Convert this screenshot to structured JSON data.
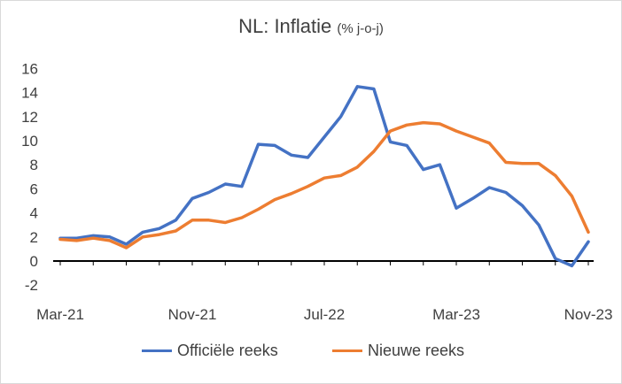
{
  "chart_data": {
    "type": "line",
    "title": "NL: Inflatie",
    "subtitle": "(% j-o-j)",
    "xlabel": "",
    "ylabel": "",
    "ylim": [
      -2,
      16
    ],
    "yticks": [
      "-2",
      "0",
      "2",
      "4",
      "6",
      "8",
      "10",
      "12",
      "14",
      "16"
    ],
    "xticks": [
      "Mar-21",
      "Nov-21",
      "Jul-22",
      "Mar-23",
      "Nov-23"
    ],
    "x": [
      "Mar-21",
      "Apr-21",
      "May-21",
      "Jun-21",
      "Jul-21",
      "Aug-21",
      "Sep-21",
      "Oct-21",
      "Nov-21",
      "Dec-21",
      "Jan-22",
      "Feb-22",
      "Mar-22",
      "Apr-22",
      "May-22",
      "Jun-22",
      "Jul-22",
      "Aug-22",
      "Sep-22",
      "Oct-22",
      "Nov-22",
      "Dec-22",
      "Jan-23",
      "Feb-23",
      "Mar-23",
      "Apr-23",
      "May-23",
      "Jun-23",
      "Jul-23",
      "Aug-23",
      "Sep-23",
      "Oct-23",
      "Nov-23"
    ],
    "series": [
      {
        "name": "Officiële reeks",
        "color": "#4472c4",
        "values": [
          1.9,
          1.9,
          2.1,
          2.0,
          1.4,
          2.4,
          2.7,
          3.4,
          5.2,
          5.7,
          6.4,
          6.2,
          9.7,
          9.6,
          8.8,
          8.6,
          10.3,
          12.0,
          14.5,
          14.3,
          9.9,
          9.6,
          7.6,
          8.0,
          4.4,
          5.2,
          6.1,
          5.7,
          4.6,
          3.0,
          0.2,
          -0.4,
          1.6
        ]
      },
      {
        "name": "Nieuwe reeks",
        "color": "#ed7d31",
        "values": [
          1.8,
          1.7,
          1.9,
          1.7,
          1.1,
          2.0,
          2.2,
          2.5,
          3.4,
          3.4,
          3.2,
          3.6,
          4.3,
          5.1,
          5.6,
          6.2,
          6.9,
          7.1,
          7.8,
          9.1,
          10.8,
          11.3,
          11.5,
          11.4,
          10.8,
          10.3,
          9.8,
          8.2,
          8.1,
          8.1,
          7.1,
          5.4,
          2.4
        ]
      }
    ],
    "zero_line": true,
    "grid": false,
    "legend_position": "bottom"
  }
}
